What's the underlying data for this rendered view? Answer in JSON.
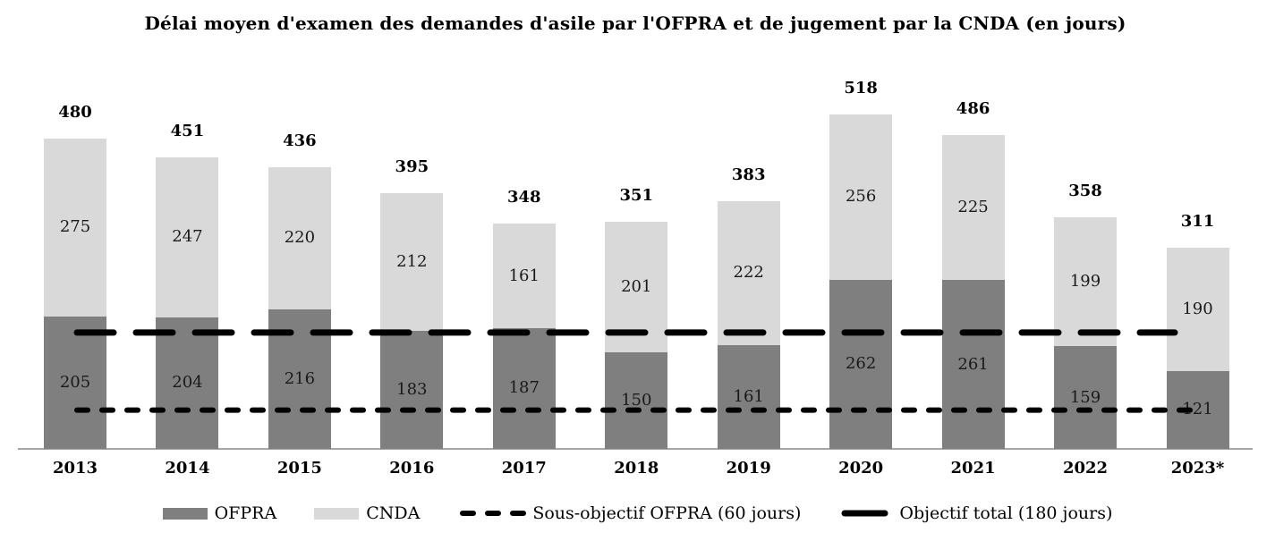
{
  "chart_data": {
    "type": "bar",
    "stacked": true,
    "title": "Délai moyen d'examen des demandes d'asile par l'OFPRA et de jugement par la CNDA (en jours)",
    "categories": [
      "2013",
      "2014",
      "2015",
      "2016",
      "2017",
      "2018",
      "2019",
      "2020",
      "2021",
      "2022",
      "2023*"
    ],
    "series": [
      {
        "name": "OFPRA",
        "color": "#7f7f7f",
        "values": [
          205,
          204,
          216,
          183,
          187,
          150,
          161,
          262,
          261,
          159,
          121
        ]
      },
      {
        "name": "CNDA",
        "color": "#d9d9d9",
        "values": [
          275,
          247,
          220,
          212,
          161,
          201,
          222,
          256,
          225,
          199,
          190
        ]
      }
    ],
    "totals": [
      480,
      451,
      436,
      395,
      348,
      351,
      383,
      518,
      486,
      358,
      311
    ],
    "reference_lines": [
      {
        "label": "Sous-objectif OFPRA (60 jours)",
        "value": 60,
        "style": "short-dash",
        "color": "#000000"
      },
      {
        "label": "Objectif total (180 jours)",
        "value": 180,
        "style": "long-dash",
        "color": "#000000"
      }
    ],
    "xlabel": "",
    "ylabel": "",
    "ylim": [
      0,
      560
    ],
    "grid": false,
    "legend_position": "bottom",
    "axis_color": "#a6a6a6",
    "text_color": "#000000"
  }
}
